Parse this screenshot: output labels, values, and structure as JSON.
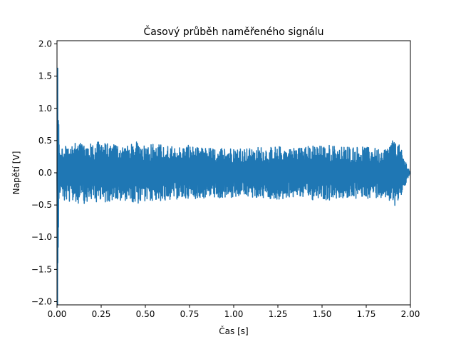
{
  "chart_data": {
    "type": "line",
    "title": "Časový průběh naměřeného signálu",
    "xlabel": "Čas [s]",
    "ylabel": "Napětí [V]",
    "xlim": [
      0.0,
      2.0
    ],
    "ylim": [
      -2.05,
      2.05
    ],
    "xticks": [
      0.0,
      0.25,
      0.5,
      0.75,
      1.0,
      1.25,
      1.5,
      1.75,
      2.0
    ],
    "xtick_labels": [
      "0.00",
      "0.25",
      "0.50",
      "0.75",
      "1.00",
      "1.25",
      "1.50",
      "1.75",
      "2.00"
    ],
    "yticks": [
      -2.0,
      -1.5,
      -1.0,
      -0.5,
      0.0,
      0.5,
      1.0,
      1.5,
      2.0
    ],
    "ytick_labels": [
      "−2.0",
      "−1.5",
      "−1.0",
      "−0.5",
      "0.0",
      "0.5",
      "1.0",
      "1.5",
      "2.0"
    ],
    "grid": false,
    "color": "#1f77b4",
    "series": [
      {
        "x": [
          0.0,
          0.002,
          0.004,
          0.006,
          0.008,
          0.01,
          0.012,
          0.014,
          0.016,
          0.018,
          0.02,
          0.03,
          0.05,
          0.1,
          0.15,
          0.2,
          0.25,
          0.3,
          0.35,
          0.4,
          0.45,
          0.5,
          0.55,
          0.6,
          0.65,
          0.7,
          0.75,
          0.8,
          0.85,
          0.9,
          0.95,
          1.0,
          1.05,
          1.1,
          1.15,
          1.2,
          1.25,
          1.3,
          1.35,
          1.4,
          1.45,
          1.5,
          1.55,
          1.6,
          1.65,
          1.7,
          1.75,
          1.8,
          1.85,
          1.9,
          1.92,
          1.95,
          2.0
        ],
        "y": [
          0.0,
          2.05,
          -2.05,
          1.5,
          -1.0,
          0.9,
          -0.5,
          0.42,
          -0.4,
          0.3,
          -0.3,
          0.4,
          -0.45,
          0.47,
          -0.48,
          0.45,
          -0.5,
          0.44,
          -0.46,
          0.42,
          -0.48,
          0.46,
          -0.45,
          0.44,
          -0.42,
          0.41,
          -0.43,
          0.39,
          -0.4,
          0.38,
          -0.42,
          0.39,
          -0.4,
          0.38,
          -0.41,
          0.4,
          -0.42,
          0.4,
          -0.39,
          0.41,
          -0.43,
          0.42,
          -0.44,
          0.4,
          -0.42,
          0.41,
          -0.4,
          0.39,
          -0.38,
          0.5,
          -0.54,
          0.35,
          0.0
        ]
      }
    ]
  }
}
